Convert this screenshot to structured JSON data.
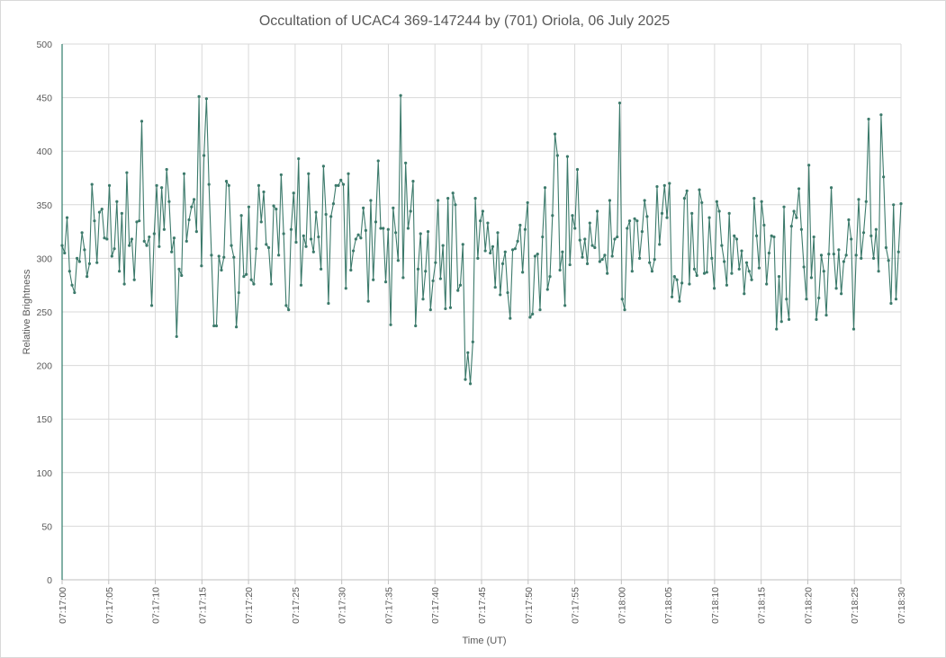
{
  "chart_data": {
    "type": "line",
    "title": "Occultation of UCAC4 369-147244 by (701) Oriola, 06 July 2025",
    "xlabel": "Time (UT)",
    "ylabel": "Relative Brightness",
    "ylim": [
      0,
      500
    ],
    "yticks": [
      0,
      50,
      100,
      150,
      200,
      250,
      300,
      350,
      400,
      450,
      500
    ],
    "xlim": [
      "07:17:00",
      "07:18:30"
    ],
    "xticks": [
      "07:17:00",
      "07:17:05",
      "07:17:10",
      "07:17:15",
      "07:17:20",
      "07:17:25",
      "07:17:30",
      "07:17:35",
      "07:17:40",
      "07:17:45",
      "07:17:50",
      "07:17:55",
      "07:18:00",
      "07:18:05",
      "07:18:10",
      "07:18:15",
      "07:18:20",
      "07:18:25",
      "07:18:30"
    ],
    "grid": true,
    "legend": "none",
    "series": [
      {
        "color": "#3c7a6b",
        "marker": "circle",
        "x_start": "07:17:00",
        "x_end": "07:18:30",
        "values": [
          312,
          305,
          338,
          288,
          275,
          268,
          300,
          297,
          324,
          308,
          283,
          295,
          369,
          335,
          296,
          343,
          346,
          319,
          318,
          368,
          302,
          309,
          353,
          288,
          342,
          276,
          380,
          312,
          318,
          280,
          334,
          335,
          428,
          316,
          312,
          320,
          256,
          323,
          368,
          311,
          366,
          327,
          383,
          353,
          306,
          319,
          227,
          290,
          284,
          379,
          316,
          336,
          348,
          355,
          325,
          451,
          293,
          396,
          449,
          369,
          303,
          237,
          237,
          302,
          289,
          301,
          372,
          368,
          312,
          301,
          236,
          268,
          340,
          283,
          285,
          348,
          280,
          276,
          309,
          368,
          334,
          362,
          313,
          310,
          276,
          349,
          346,
          303,
          378,
          323,
          256,
          252,
          327,
          361,
          315,
          393,
          275,
          321,
          311,
          379,
          318,
          306,
          343,
          320,
          290,
          386,
          341,
          258,
          339,
          351,
          368,
          368,
          373,
          369,
          272,
          379,
          289,
          307,
          318,
          322,
          319,
          347,
          326,
          260,
          354,
          280,
          334,
          391,
          328,
          328,
          278,
          327,
          238,
          347,
          324,
          298,
          452,
          282,
          389,
          328,
          344,
          372,
          237,
          290,
          323,
          262,
          288,
          325,
          252,
          279,
          296,
          354,
          281,
          312,
          253,
          356,
          254,
          361,
          350,
          270,
          275,
          313,
          187,
          212,
          183,
          222,
          356,
          300,
          335,
          344,
          307,
          333,
          305,
          311,
          273,
          324,
          266,
          295,
          306,
          268,
          244,
          308,
          309,
          316,
          331,
          287,
          327,
          352,
          245,
          248,
          302,
          304,
          252,
          320,
          366,
          271,
          283,
          340,
          416,
          396,
          289,
          306,
          256,
          395,
          294,
          340,
          328,
          383,
          317,
          301,
          318,
          295,
          333,
          312,
          310,
          344,
          297,
          299,
          303,
          286,
          354,
          302,
          318,
          320,
          445,
          262,
          252,
          328,
          335,
          288,
          337,
          335,
          300,
          325,
          354,
          339,
          296,
          288,
          299,
          367,
          313,
          342,
          368,
          338,
          370,
          264,
          283,
          280,
          260,
          277,
          356,
          363,
          276,
          342,
          290,
          284,
          364,
          352,
          286,
          287,
          338,
          300,
          272,
          353,
          344,
          312,
          297,
          275,
          342,
          286,
          321,
          318,
          290,
          307,
          267,
          296,
          288,
          280,
          356,
          321,
          291,
          353,
          331,
          276,
          305,
          321,
          320,
          234,
          283,
          241,
          348,
          262,
          243,
          330,
          344,
          338,
          365,
          327,
          292,
          262,
          387,
          282,
          320,
          243,
          263,
          303,
          288,
          247,
          304,
          366,
          304,
          272,
          308,
          267,
          297,
          303,
          336,
          318,
          234,
          303,
          355,
          300,
          324,
          353,
          430,
          321,
          300,
          327,
          288,
          434,
          376,
          310,
          298,
          258,
          350,
          262,
          306,
          351
        ]
      }
    ]
  }
}
